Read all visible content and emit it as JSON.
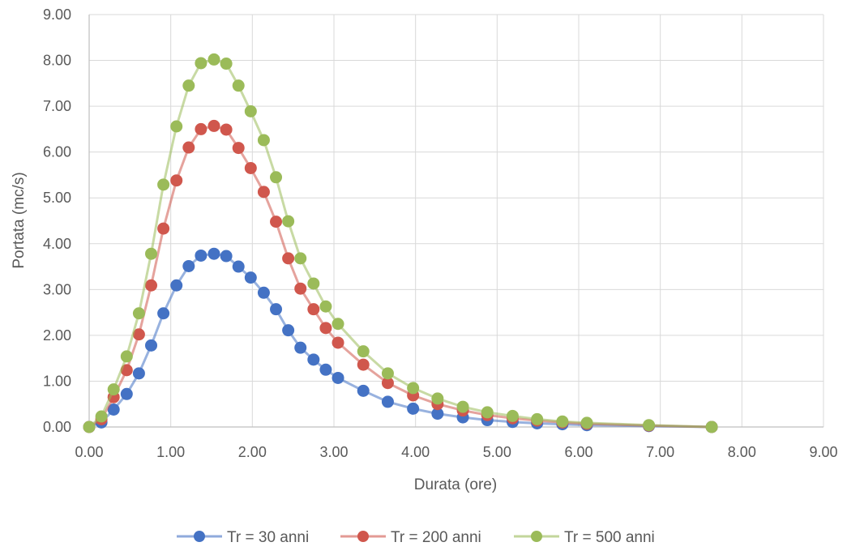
{
  "chart_data": {
    "type": "scatter",
    "xlabel": "Durata (ore)",
    "ylabel": "Portata (mc/s)",
    "xlim": [
      0,
      9
    ],
    "ylim": [
      0,
      9
    ],
    "x_ticks": [
      "0.00",
      "1.00",
      "2.00",
      "3.00",
      "4.00",
      "5.00",
      "6.00",
      "7.00",
      "8.00",
      "9.00"
    ],
    "y_ticks": [
      "0.00",
      "1.00",
      "2.00",
      "3.00",
      "4.00",
      "5.00",
      "6.00",
      "7.00",
      "8.00",
      "9.00"
    ],
    "grid": true,
    "legend_position": "bottom",
    "markers": true,
    "lines": true,
    "x": [
      0.0,
      0.15,
      0.3,
      0.46,
      0.61,
      0.76,
      0.91,
      1.07,
      1.22,
      1.37,
      1.53,
      1.68,
      1.83,
      1.98,
      2.14,
      2.29,
      2.44,
      2.59,
      2.75,
      2.9,
      3.05,
      3.36,
      3.66,
      3.97,
      4.27,
      4.58,
      4.88,
      5.19,
      5.49,
      5.8,
      6.1,
      6.86,
      7.63
    ],
    "series": [
      {
        "name": "Tr = 30 anni",
        "color": "#4472c4",
        "values": [
          0.0,
          0.1,
          0.38,
          0.72,
          1.17,
          1.78,
          2.48,
          3.09,
          3.51,
          3.74,
          3.78,
          3.73,
          3.5,
          3.26,
          2.93,
          2.57,
          2.11,
          1.73,
          1.47,
          1.25,
          1.07,
          0.79,
          0.55,
          0.4,
          0.29,
          0.21,
          0.15,
          0.11,
          0.08,
          0.06,
          0.04,
          0.02,
          0.0
        ]
      },
      {
        "name": "Tr = 200 anni",
        "color": "#d0574d",
        "values": [
          0.0,
          0.17,
          0.65,
          1.24,
          2.02,
          3.09,
          4.33,
          5.38,
          6.1,
          6.5,
          6.57,
          6.49,
          6.09,
          5.65,
          5.13,
          4.48,
          3.68,
          3.02,
          2.57,
          2.16,
          1.84,
          1.36,
          0.96,
          0.69,
          0.5,
          0.36,
          0.26,
          0.19,
          0.14,
          0.1,
          0.07,
          0.03,
          0.0
        ]
      },
      {
        "name": "Tr = 500 anni",
        "color": "#9bbb59",
        "values": [
          0.0,
          0.23,
          0.82,
          1.54,
          2.48,
          3.78,
          5.29,
          6.56,
          7.45,
          7.94,
          8.02,
          7.93,
          7.45,
          6.89,
          6.26,
          5.45,
          4.49,
          3.68,
          3.13,
          2.63,
          2.25,
          1.65,
          1.17,
          0.85,
          0.62,
          0.44,
          0.32,
          0.24,
          0.17,
          0.12,
          0.09,
          0.04,
          0.0
        ]
      }
    ]
  }
}
